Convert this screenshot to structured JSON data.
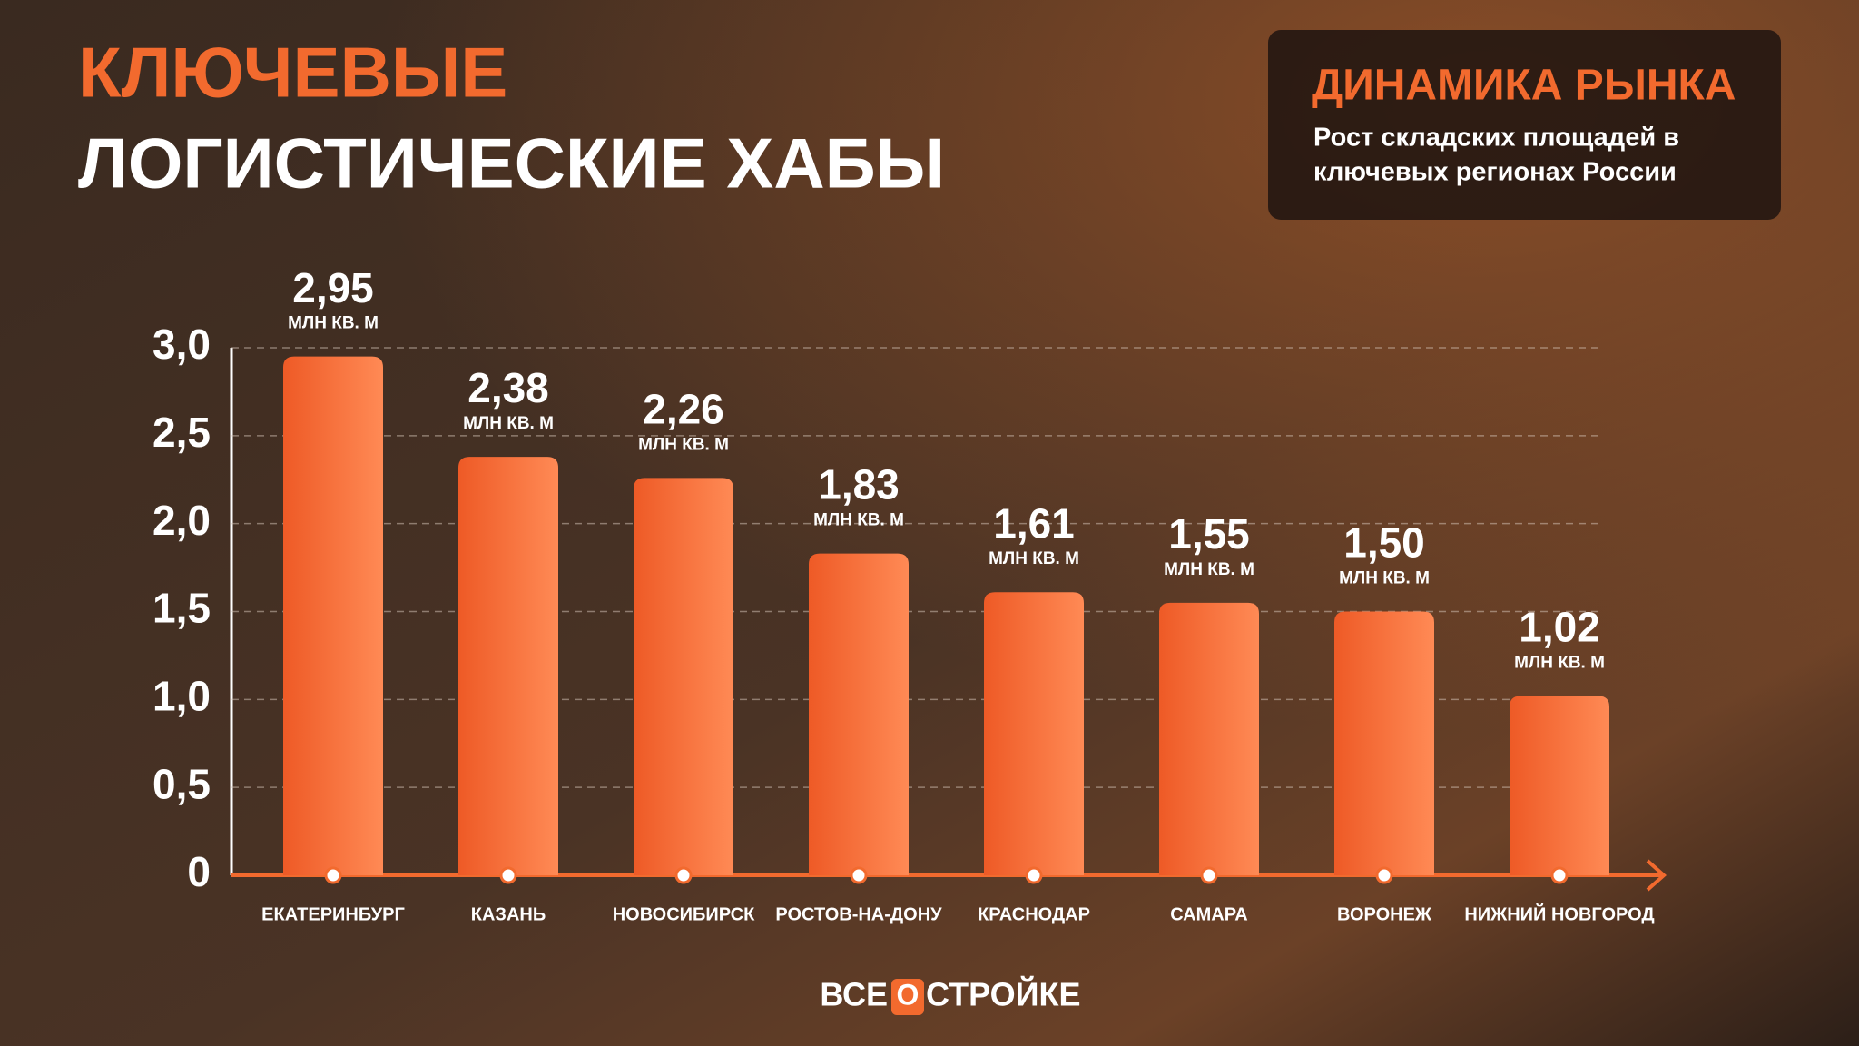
{
  "chart_data": {
    "type": "bar",
    "title": [
      "КЛЮЧЕВЫЕ",
      "ЛОГИСТИЧЕСКИЕ ХАБЫ"
    ],
    "box_title": "ДИНАМИКА РЫНКА",
    "box_text": [
      "Рост складских площадей в",
      "ключевых регионах России"
    ],
    "categories": [
      "ЕКАТЕРИНБУРГ",
      "КАЗАНЬ",
      "НОВОСИБИРСК",
      "РОСТОВ-НА-ДОНУ",
      "КРАСНОДАР",
      "САМАРА",
      "ВОРОНЕЖ",
      "НИЖНИЙ НОВГОРОД"
    ],
    "values": [
      2.95,
      2.38,
      2.26,
      1.83,
      1.61,
      1.55,
      1.5,
      1.02
    ],
    "value_labels": [
      "2,95",
      "2,38",
      "2,26",
      "1,83",
      "1,61",
      "1,55",
      "1,50",
      "1,02"
    ],
    "value_unit": "МЛН КВ. М",
    "color": "#f26a2e",
    "ylim": [
      0,
      3
    ],
    "yticks": [
      0,
      {
        "value": 0.5,
        "label": "0,5"
      },
      {
        "value": 1,
        "label": "1,0"
      },
      {
        "value": 1.5,
        "label": "1,5"
      },
      {
        "value": 2,
        "label": "2,0"
      },
      {
        "value": 2.5,
        "label": "2,5"
      },
      {
        "value": 3,
        "label": "3,0"
      }
    ],
    "grid": true,
    "logo": [
      "ВСЕ",
      "О",
      "СТРОЙКЕ"
    ]
  }
}
